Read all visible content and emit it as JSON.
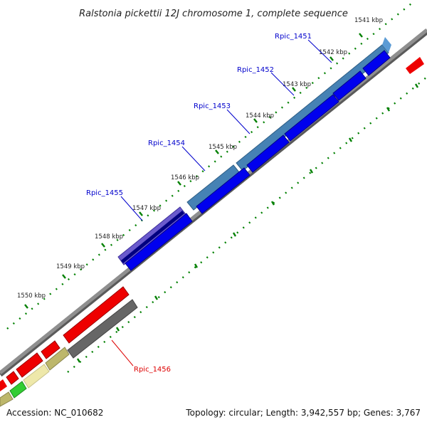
{
  "title": "Ralstonia pickettii 12J chromosome 1, complete sequence",
  "footer": {
    "accession": "Accession: NC_010682",
    "summary": "Topology: circular; Length: 3,942,557 bp; Genes: 3,767"
  },
  "kbp_ticks": [
    "1541 kbp",
    "1542 kbp",
    "1543 kbp",
    "1544 kbp",
    "1545 kbp",
    "1546 kbp",
    "1547 kbp",
    "1548 kbp",
    "1549 kbp",
    "1550 kbp"
  ],
  "genes": [
    {
      "name": "Rpic_1451",
      "color": "#0000cc"
    },
    {
      "name": "Rpic_1452",
      "color": "#0000cc"
    },
    {
      "name": "Rpic_1453",
      "color": "#0000cc"
    },
    {
      "name": "Rpic_1454",
      "color": "#0000cc"
    },
    {
      "name": "Rpic_1455",
      "color": "#0000cc"
    },
    {
      "name": "Rpic_1456",
      "color": "#dd0000"
    }
  ],
  "colors": {
    "cds_blue": "#0000ee",
    "gene_steelblue": "#4682b4",
    "gene_purple": "#6a5acd",
    "gene_navy": "#000080",
    "gene_red": "#ee0000",
    "gene_gray": "#666666",
    "gene_khaki": "#bdb76b",
    "gene_pale": "#eee8aa",
    "gene_green": "#32cd32",
    "backbone": "#808080",
    "tick_green": "#008000"
  }
}
